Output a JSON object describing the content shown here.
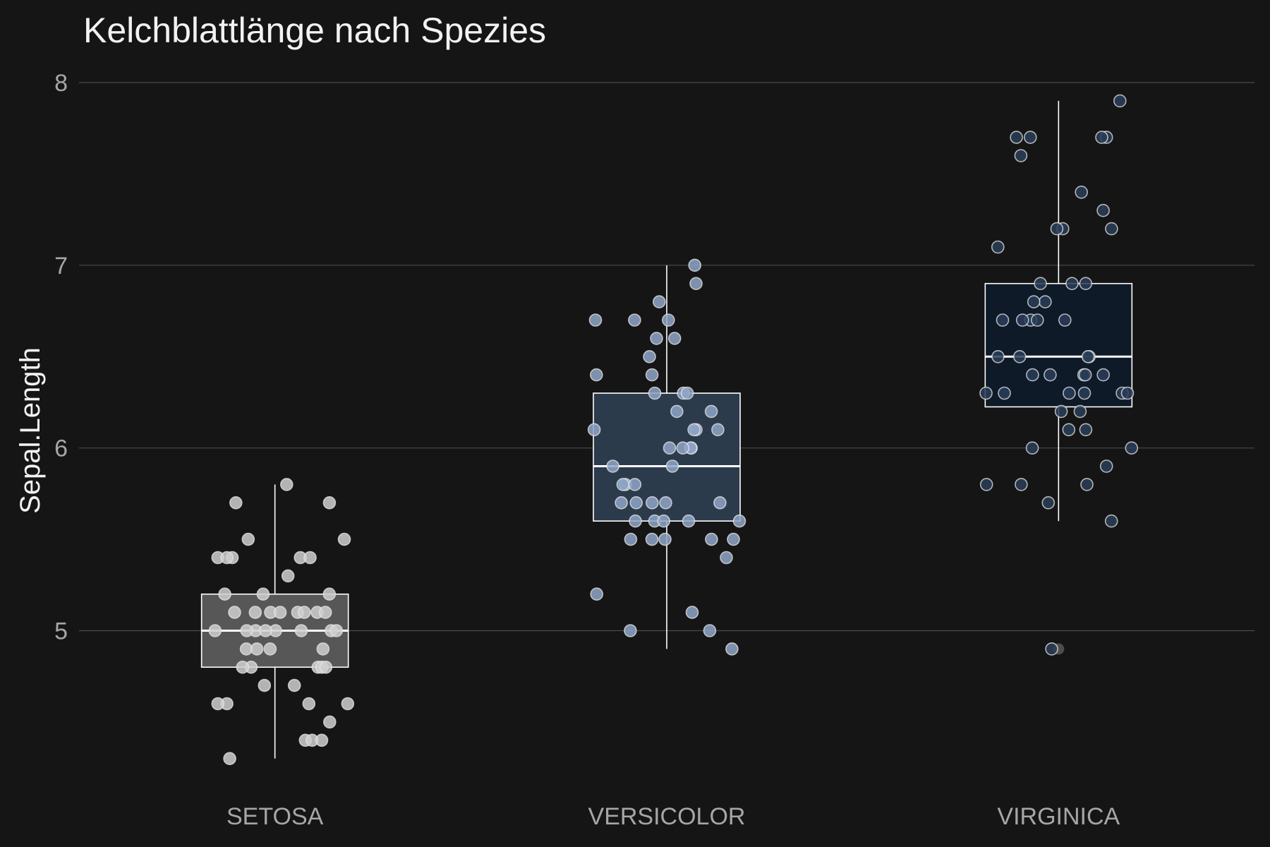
{
  "chart_data": {
    "type": "boxplot",
    "title": "Kelchblattlänge nach Spezies",
    "xlabel": "",
    "ylabel": "Sepal.Length",
    "ylim": [
      4.1,
      8.2
    ],
    "yticks": [
      5,
      6,
      7,
      8
    ],
    "grid": true,
    "legend": "none",
    "categories": [
      "SETOSA",
      "VERSICOLOR",
      "VIRGINICA"
    ],
    "colors": {
      "background": "#151515",
      "grid": "#4a4a4a",
      "box_SETOSA": "#575757",
      "box_VERSICOLOR": "#2c3b4c",
      "box_VIRGINICA": "#0e1a28",
      "point_SETOSA": "#cfcfcf",
      "point_VERSICOLOR": "#8fa6c8",
      "point_VIRGINICA": "#2a3d58",
      "outline": "#ffffff"
    },
    "boxes": [
      {
        "category": "SETOSA",
        "min": 4.3,
        "q1": 4.8,
        "median": 5.0,
        "q3": 5.2,
        "max": 5.8
      },
      {
        "category": "VERSICOLOR",
        "min": 4.9,
        "q1": 5.6,
        "median": 5.9,
        "q3": 6.3,
        "max": 7.0
      },
      {
        "category": "VIRGINICA",
        "min": 5.6,
        "q1": 6.225,
        "median": 6.5,
        "q3": 6.9,
        "max": 7.9,
        "outliers": [
          4.9
        ]
      }
    ],
    "points": [
      {
        "category": "SETOSA",
        "values": [
          5.1,
          4.9,
          4.7,
          4.6,
          5.0,
          5.4,
          4.6,
          5.0,
          4.4,
          4.9,
          5.4,
          4.8,
          4.8,
          4.3,
          5.8,
          5.7,
          5.4,
          5.1,
          5.7,
          5.1,
          5.4,
          5.1,
          4.6,
          5.1,
          4.8,
          5.0,
          5.0,
          5.2,
          5.2,
          4.7,
          4.8,
          5.4,
          5.2,
          5.5,
          4.9,
          5.0,
          5.5,
          4.9,
          4.4,
          5.1,
          5.0,
          4.5,
          4.4,
          5.0,
          5.1,
          4.8,
          5.1,
          4.6,
          5.3,
          5.0
        ]
      },
      {
        "category": "VERSICOLOR",
        "values": [
          7.0,
          6.4,
          6.9,
          5.5,
          6.5,
          5.7,
          6.3,
          4.9,
          6.6,
          5.2,
          5.0,
          5.9,
          6.0,
          6.1,
          5.6,
          6.7,
          5.6,
          5.8,
          6.2,
          5.6,
          5.9,
          6.1,
          6.3,
          6.1,
          6.4,
          6.6,
          6.8,
          6.7,
          6.0,
          5.7,
          5.5,
          5.5,
          5.8,
          6.0,
          5.4,
          6.0,
          6.7,
          6.3,
          5.6,
          5.5,
          5.5,
          6.1,
          5.8,
          5.0,
          5.6,
          5.7,
          5.7,
          6.2,
          5.1,
          5.7
        ]
      },
      {
        "category": "VIRGINICA",
        "values": [
          6.3,
          5.8,
          7.1,
          6.3,
          6.5,
          7.6,
          4.9,
          7.3,
          6.7,
          7.2,
          6.5,
          6.4,
          6.8,
          5.7,
          5.8,
          6.4,
          6.5,
          7.7,
          7.7,
          6.0,
          6.9,
          5.6,
          7.7,
          6.3,
          6.7,
          7.2,
          6.2,
          6.1,
          6.4,
          7.2,
          7.4,
          7.9,
          6.4,
          6.3,
          6.1,
          7.7,
          6.3,
          6.4,
          6.0,
          6.9,
          6.7,
          6.9,
          5.8,
          6.8,
          6.7,
          6.7,
          6.3,
          6.5,
          6.2,
          5.9
        ]
      }
    ]
  }
}
